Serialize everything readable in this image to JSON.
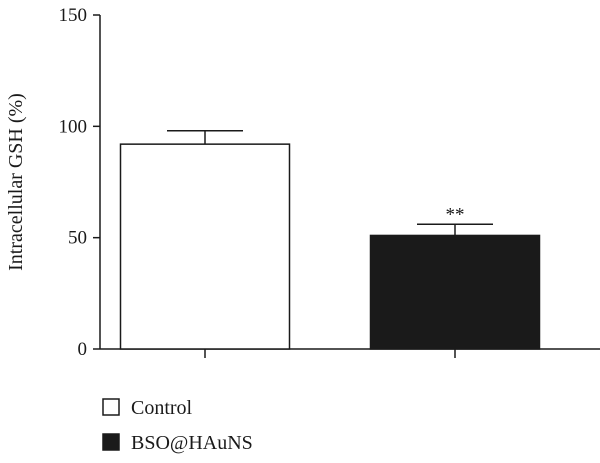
{
  "chart_data": {
    "type": "bar",
    "categories": [
      "Control",
      "BSO@HAuNS"
    ],
    "values": [
      92,
      51
    ],
    "errors": [
      6,
      5
    ],
    "bar_colors": [
      "#ffffff",
      "#1a1a1a"
    ],
    "significance": [
      "",
      "**"
    ],
    "title": "",
    "xlabel": "",
    "ylabel": "Intracellular GSH (%)",
    "ylim": [
      0,
      150
    ],
    "yticks": [
      0,
      50,
      100,
      150
    ],
    "grid": false,
    "legend_placement": "bottom-left"
  },
  "legend": {
    "items": [
      {
        "label": "Control",
        "color": "#ffffff"
      },
      {
        "label": "BSO@HAuNS",
        "color": "#1a1a1a"
      }
    ]
  }
}
